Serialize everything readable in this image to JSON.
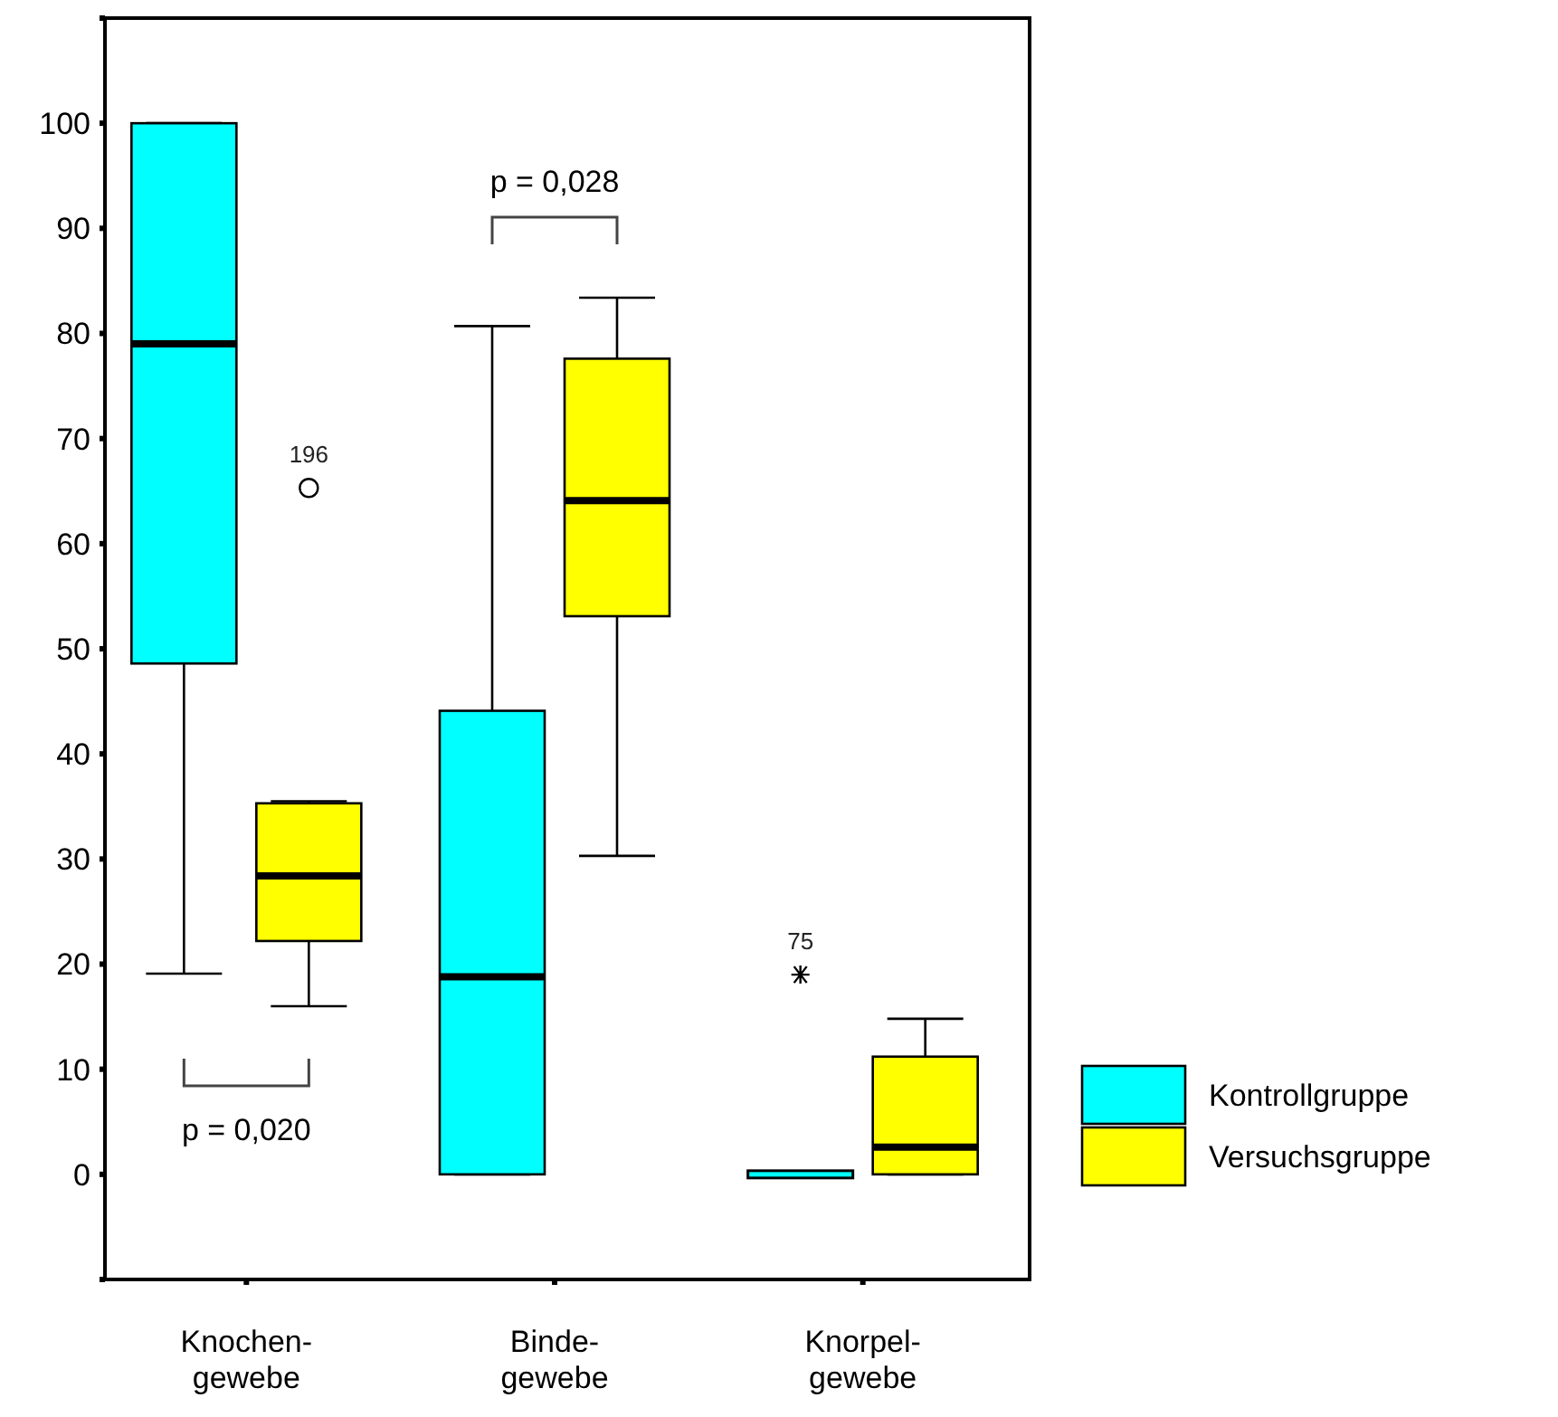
{
  "chart_data": {
    "type": "box",
    "categories": [
      "Knochen-\ngewebe",
      "Binde-\ngewebe",
      "Knorpel-\ngewebe"
    ],
    "ylim": [
      -10,
      110
    ],
    "yticks": [
      {
        "value": -10,
        "label": null
      },
      0,
      10,
      20,
      30,
      40,
      50,
      60,
      70,
      80,
      90,
      100,
      {
        "value": 110,
        "label": null
      }
    ],
    "legend": "right",
    "grid": false,
    "series": [
      {
        "name": "Kontrollgruppe",
        "color": "#00ffff",
        "marker": "star",
        "boxes": [
          {
            "low": 19.1,
            "q1": 48.6,
            "median": 79,
            "q3": 100,
            "high": 100
          },
          {
            "low": 0,
            "q1": 0,
            "median": 18.8,
            "q3": 44.1,
            "high": 80.7
          },
          {
            "low": 0,
            "q1": 0,
            "median": 0,
            "q3": 0,
            "high": 0,
            "outliers": [
              19
            ]
          }
        ]
      },
      {
        "name": "Versuchsgruppe",
        "color": "#ffff00",
        "marker": "circle",
        "boxes": [
          {
            "low": 16,
            "q1": 22.2,
            "median": 28.4,
            "q3": 35.3,
            "high": 35.5,
            "outliers": [
              65.3
            ]
          },
          {
            "low": 30.3,
            "q1": 53.1,
            "median": 64.1,
            "q3": 77.6,
            "high": 83.4
          },
          {
            "low": 0,
            "q1": 0,
            "median": 2.6,
            "q3": 11.2,
            "high": 14.8
          }
        ]
      }
    ],
    "annotations": [
      "p = 0,020",
      "p = 0,028",
      "196",
      "75"
    ]
  }
}
